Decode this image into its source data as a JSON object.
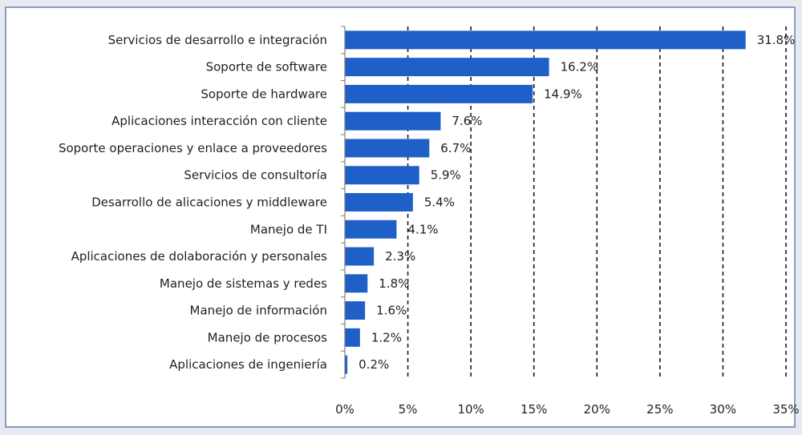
{
  "chart_data": {
    "type": "bar",
    "orientation": "horizontal",
    "title": "",
    "xlabel": "",
    "ylabel": "",
    "categories": [
      "Servicios de desarrollo e integración",
      "Soporte de software",
      "Soporte de hardware",
      "Aplicaciones interacción con cliente",
      "Soporte operaciones y enlace a proveedores",
      "Servicios de consultoría",
      "Desarrollo de alicaciones y middleware",
      "Manejo de TI",
      "Aplicaciones de dolaboración y personales",
      "Manejo de sistemas y redes",
      "Manejo de información",
      "Manejo de procesos",
      "Aplicaciones de ingeniería"
    ],
    "values": [
      31.8,
      16.2,
      14.9,
      7.6,
      6.7,
      5.9,
      5.4,
      4.1,
      2.3,
      1.8,
      1.6,
      1.2,
      0.2
    ],
    "value_labels": [
      "31.8%",
      "16.2%",
      "14.9%",
      "7.6%",
      "6.7%",
      "5.9%",
      "5.4%",
      "4.1%",
      "2.3%",
      "1.8%",
      "1.6%",
      "1.2%",
      "0.2%"
    ],
    "xlim": [
      0,
      35
    ],
    "x_ticks": [
      0,
      5,
      10,
      15,
      20,
      25,
      30,
      35
    ],
    "x_tick_labels": [
      "0%",
      "5%",
      "10%",
      "15%",
      "20%",
      "25%",
      "30%",
      "35%"
    ],
    "grid": "vertical dashed",
    "legend": "none",
    "bar_color": "#1f5fc8",
    "grid_color": "#1a1a1a",
    "axis_color": "#808080"
  }
}
